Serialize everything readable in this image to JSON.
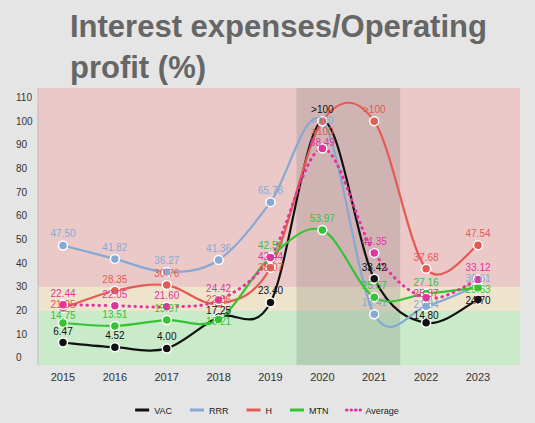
{
  "chart_data": {
    "type": "line",
    "title": "Interest expenses/Operating profit (%)",
    "categories": [
      "2015",
      "2016",
      "2017",
      "2018",
      "2019",
      "2020",
      "2021",
      "2022",
      "2023"
    ],
    "ylim": [
      -3,
      114
    ],
    "yticks": [
      0,
      10,
      20,
      30,
      40,
      50,
      60,
      70,
      80,
      90,
      100,
      110
    ],
    "grid": false,
    "data_labels": true,
    "legend": "bottom",
    "bands": [
      {
        "from": -3,
        "to": 20,
        "color": "#c9ebc9"
      },
      {
        "from": 20,
        "to": 30,
        "color": "#eee4cb"
      },
      {
        "from": 30,
        "to": 114,
        "color": "#ebc9c9"
      }
    ],
    "highlight": [
      "2020",
      "2021"
    ],
    "series": [
      {
        "name": "VAC",
        "color": "#111111",
        "marker": "circle",
        "line_style": "solid",
        "values": [
          6.47,
          4.52,
          4.0,
          17.25,
          23.4,
          100,
          33.42,
          14.8,
          24.7
        ],
        "value_labels": [
          "6.47",
          "4.52",
          "4.00",
          "17.25",
          "23.40",
          ">100",
          "33.42",
          "14.80",
          "24.70"
        ]
      },
      {
        "name": "RRR",
        "color": "#86a9d3",
        "marker": "circle",
        "line_style": "solid",
        "values": [
          47.5,
          41.82,
          36.27,
          41.36,
          65.78,
          100,
          18.41,
          21.84,
          30.61
        ],
        "value_labels": [
          "47.50",
          "41.82",
          "36.27",
          "41.36",
          "65.78",
          ">100",
          "18.41",
          "21.84",
          "30.61"
        ]
      },
      {
        "name": "H",
        "color": "#e35b52",
        "marker": "circle",
        "line_style": "solid",
        "values": [
          21.05,
          28.35,
          30.76,
          22.86,
          38.07,
          100,
          100,
          37.68,
          47.54
        ],
        "value_labels": [
          "21.05",
          "28.35",
          "30.76",
          "22.86",
          "38.07",
          ">100",
          ">100",
          "37.68",
          "47.54"
        ]
      },
      {
        "name": "MTN",
        "color": "#33c433",
        "marker": "circle",
        "line_style": "solid",
        "values": [
          14.75,
          13.51,
          15.97,
          16.21,
          42.58,
          53.97,
          25.57,
          27.16,
          29.63
        ],
        "value_labels": [
          "14.75",
          "13.51",
          "15.97",
          "16.21",
          "42.58",
          "53.97",
          "25.57",
          "27.16",
          "29.63"
        ]
      },
      {
        "name": "Average",
        "color": "#e0349c",
        "marker": "circle",
        "line_style": "dotted",
        "values": [
          22.44,
          22.05,
          21.6,
          24.42,
          42.44,
          88.49,
          44.35,
          25.37,
          33.12
        ],
        "value_labels": [
          "22.44",
          "22.05",
          "21.60",
          "24.42",
          "42.44",
          "88.49",
          "44.35",
          "25.37",
          "33.12"
        ]
      }
    ]
  }
}
